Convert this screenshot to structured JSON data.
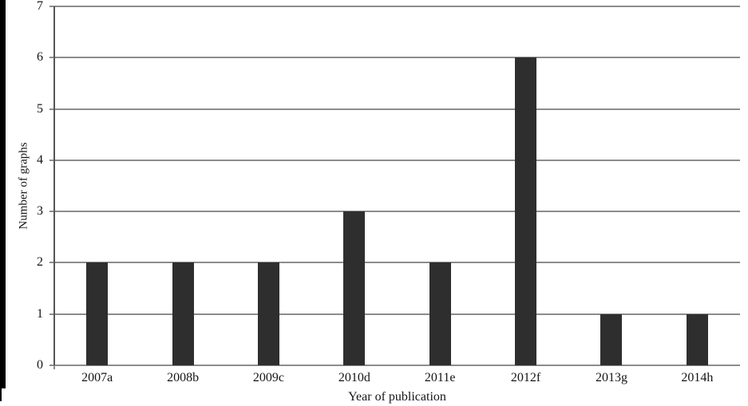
{
  "figure": {
    "background": "#ffffff",
    "scan_artifact_color": "#000000"
  },
  "chart_data": {
    "type": "bar",
    "title": "",
    "categories": [
      "2007a",
      "2008b",
      "2009c",
      "2010d",
      "2011e",
      "2012f",
      "2013g",
      "2014h"
    ],
    "values": [
      2,
      2,
      2,
      3,
      2,
      6,
      1,
      1
    ],
    "xlabel": "Year of publication",
    "ylabel": "Number of graphs",
    "ylim": [
      0,
      7
    ],
    "yticks": [
      0,
      1,
      2,
      3,
      4,
      5,
      6,
      7
    ],
    "grid": "horizontal",
    "legend": "none",
    "bar_color": "#2e2e2e",
    "gridline_color": "#8c8c8c",
    "axis_color": "#555555",
    "text_color": "#151515"
  }
}
